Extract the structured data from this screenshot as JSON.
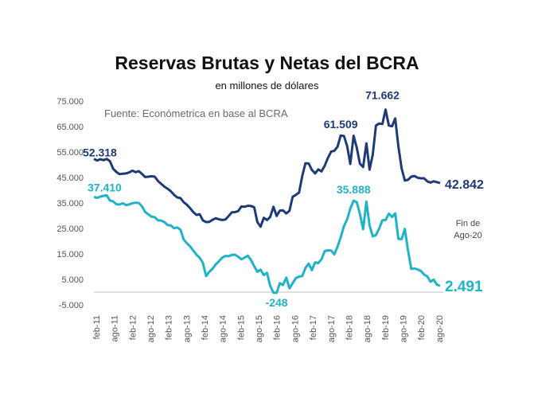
{
  "chart_data": {
    "type": "line",
    "title": "Reservas Brutas y Netas del BCRA",
    "subtitle": "en millones de dólares",
    "source": "Fuente: Económetrica en base al BCRA",
    "note": [
      "Fin de",
      "Ago-20"
    ],
    "xlabel": "",
    "ylabel": "",
    "ylim": [
      -5000,
      75000
    ],
    "yticks": [
      -5000,
      5000,
      15000,
      25000,
      35000,
      45000,
      55000,
      65000,
      75000
    ],
    "ytick_labels": [
      "-5.000",
      "5.000",
      "15.000",
      "25.000",
      "35.000",
      "45.000",
      "55.000",
      "65.000",
      "75.000"
    ],
    "xtick_labels": [
      "feb-11",
      "ago-11",
      "feb-12",
      "ago-12",
      "feb-13",
      "ago-13",
      "feb-14",
      "ago-14",
      "feb-15",
      "ago-15",
      "feb-16",
      "ago-16",
      "feb-17",
      "ago-17",
      "feb-18",
      "ago-18",
      "feb-19",
      "ago-19",
      "feb-20",
      "ago-20"
    ],
    "x_start": "feb-11",
    "x_end": "ago-20",
    "grid": false,
    "colors": {
      "brutas": "#1f3a77",
      "netas": "#1fb3c8",
      "brutas_label": "#1f3a77",
      "netas_label": "#1fb3c8"
    },
    "series": [
      {
        "name": "brutas",
        "values": [
          52318,
          51700,
          52200,
          51800,
          52300,
          51400,
          48400,
          47200,
          46300,
          46500,
          46600,
          47000,
          47700,
          47100,
          47500,
          46400,
          45200,
          45300,
          45500,
          45300,
          43600,
          42500,
          41400,
          40600,
          39600,
          38200,
          37200,
          36900,
          35300,
          34300,
          33000,
          31400,
          30300,
          30600,
          28200,
          27500,
          27600,
          28400,
          29000,
          28600,
          28300,
          28500,
          29800,
          31300,
          31400,
          31800,
          33600,
          33500,
          33900,
          33800,
          33300,
          27500,
          25700,
          29200,
          28300,
          29500,
          33500,
          29900,
          32000,
          32100,
          30900,
          31900,
          37400,
          38200,
          39100,
          45600,
          50600,
          50500,
          48000,
          46600,
          48200,
          47400,
          49600,
          52700,
          55200,
          55500,
          57100,
          61509,
          61300,
          57300,
          50300,
          61400,
          56700,
          50400,
          49100,
          58400,
          48100,
          54000,
          65400,
          66200,
          66000,
          71662,
          65400,
          65100,
          68200,
          57200,
          48500,
          43800,
          44100,
          45300,
          45600,
          44900,
          44700,
          44700,
          43500,
          43000,
          43500,
          43200,
          42842
        ],
        "end_label": "42.842"
      },
      {
        "name": "netas",
        "values": [
          37410,
          37000,
          37500,
          37800,
          38000,
          36000,
          35600,
          34500,
          34400,
          34900,
          34200,
          34400,
          34900,
          35100,
          35000,
          33700,
          31500,
          30500,
          29600,
          29400,
          28200,
          28100,
          27500,
          26300,
          26200,
          25100,
          25400,
          24500,
          20700,
          19200,
          18000,
          16300,
          14700,
          13500,
          11500,
          6300,
          8000,
          9200,
          10900,
          12100,
          13500,
          14200,
          14100,
          14600,
          14700,
          13900,
          12900,
          13500,
          14300,
          12600,
          10200,
          8000,
          8800,
          6700,
          7600,
          2500,
          -248,
          -248,
          3500,
          2800,
          5700,
          1500,
          3500,
          5500,
          6100,
          6300,
          9500,
          11200,
          8600,
          11700,
          11400,
          12900,
          16100,
          16400,
          16300,
          14800,
          17800,
          21500,
          25900,
          28600,
          32800,
          35888,
          35300,
          30600,
          24700,
          35500,
          26200,
          21900,
          22400,
          25000,
          28200,
          28300,
          30800,
          29500,
          30900,
          20900,
          20800,
          24800,
          16300,
          9100,
          9300,
          8900,
          8300,
          6900,
          6200,
          4100,
          4900,
          2900,
          2491
        ],
        "end_label": "2.491"
      }
    ],
    "annotations": [
      {
        "text": "52.318",
        "series": "brutas",
        "index": 0,
        "value": 52318
      },
      {
        "text": "37.410",
        "series": "netas",
        "index": 0,
        "value": 37410
      },
      {
        "text": "61.509",
        "series": "brutas",
        "index": 77,
        "value": 61509
      },
      {
        "text": "71.662",
        "series": "brutas",
        "index": 91,
        "value": 71662
      },
      {
        "text": "35.888",
        "series": "netas",
        "index": 81,
        "value": 35888
      },
      {
        "text": "-248",
        "series": "netas",
        "index": 57,
        "value": -248
      }
    ]
  }
}
